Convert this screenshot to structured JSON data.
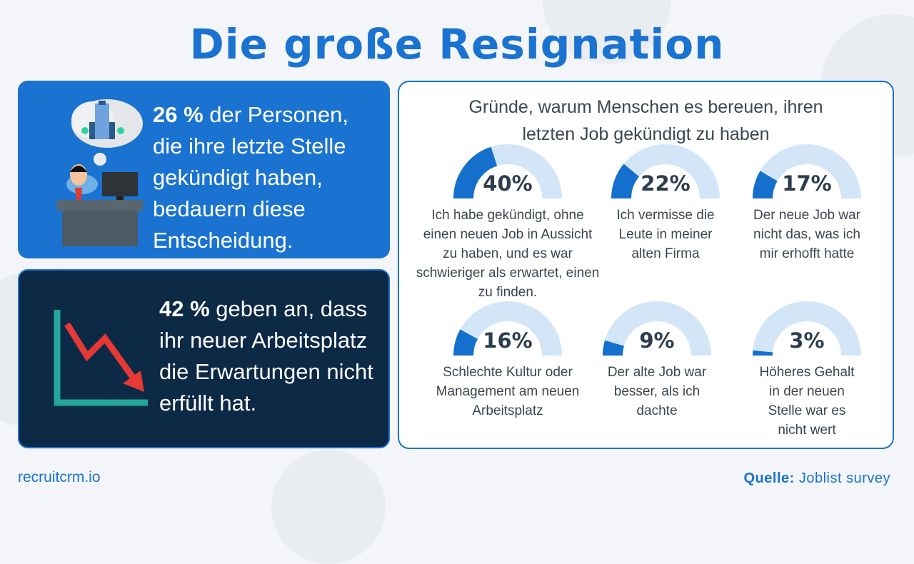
{
  "title": "Die große Resignation",
  "card1": {
    "highlight": "26 %",
    "text": " der Personen, die ihre letzte Stelle gekündigt haben, bedauern diese Entscheidung."
  },
  "card2": {
    "highlight": "42 %",
    "text": " geben an, dass ihr neuer Arbeitsplatz die Erwartungen nicht erfüllt hat."
  },
  "chart_data": {
    "type": "gauge",
    "title": "Gründe, warum Menschen es bereuen, ihren letzten Job gekündigt zu haben",
    "range": [
      0,
      100
    ],
    "items": [
      {
        "label": "40%",
        "value": 40,
        "text": "Ich habe gekündigt, ohne einen neuen Job in Aussicht zu haben, und es war schwieriger als erwartet, einen zu finden."
      },
      {
        "label": "22%",
        "value": 22,
        "text": "Ich vermisse die Leute in meiner alten Firma"
      },
      {
        "label": "17%",
        "value": 17,
        "text": "Der neue Job war nicht das, was ich mir erhofft hatte"
      },
      {
        "label": "16%",
        "value": 16,
        "text": "Schlechte Kultur oder Management am neuen Arbeitsplatz"
      },
      {
        "label": "9%",
        "value": 9,
        "text": "Der alte Job war besser, als ich dachte"
      },
      {
        "label": "3%",
        "value": 3,
        "text": "Höheres Gehalt in der neuen Stelle war es nicht wert"
      }
    ],
    "colors": {
      "fill": "#1470cc",
      "track": "#d3e6f8"
    }
  },
  "footer": {
    "brand": "recruitcrm.io",
    "source_label": "Quelle:",
    "source": " Joblist survey"
  }
}
